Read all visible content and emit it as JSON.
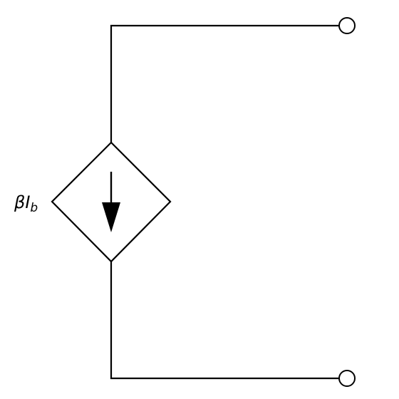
{
  "diagram": {
    "source_label": {
      "main": "βI",
      "subscript": "b"
    }
  }
}
